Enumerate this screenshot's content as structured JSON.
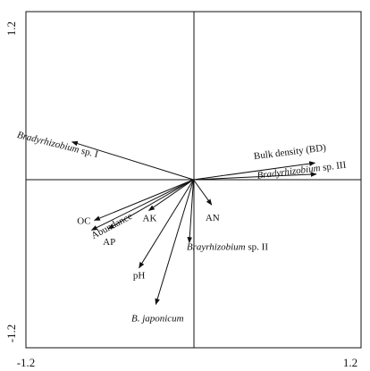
{
  "chart_data": {
    "type": "scatter",
    "subtype": "biplot",
    "title": "",
    "xlabel": "",
    "ylabel": "",
    "xlim": [
      -1.2,
      1.2
    ],
    "ylim": [
      -1.2,
      1.2
    ],
    "grid": false,
    "axis_lines_through_origin": true,
    "x_ticks": [
      {
        "value": -1.2,
        "label": "-1.2"
      },
      {
        "value": 1.2,
        "label": "1.2"
      }
    ],
    "y_ticks": [
      {
        "value": 1.2,
        "label": "1.2"
      },
      {
        "value": -1.2,
        "label": "-1.2"
      }
    ],
    "vectors": [
      {
        "id": "bradyrhizobium-sp-i",
        "prefix": "Bradyrhizobium",
        "suffix": " sp. I",
        "italic_prefix": true,
        "x": -0.87,
        "y": 0.27
      },
      {
        "id": "bulk-density",
        "prefix": "",
        "suffix": "Bulk density (BD)",
        "italic_prefix": false,
        "x": 0.87,
        "y": 0.12
      },
      {
        "id": "bradyrhizobium-sp-iii",
        "prefix": "Bradyrhizobium",
        "suffix": " sp. III",
        "italic_prefix": true,
        "x": 0.88,
        "y": 0.04
      },
      {
        "id": "oc",
        "prefix": "",
        "suffix": "OC",
        "italic_prefix": false,
        "x": -0.71,
        "y": -0.29
      },
      {
        "id": "abundance",
        "prefix": "",
        "suffix": "Abundance",
        "italic_prefix": false,
        "x": -0.73,
        "y": -0.36
      },
      {
        "id": "ap",
        "prefix": "",
        "suffix": "AP",
        "italic_prefix": false,
        "x": -0.61,
        "y": -0.35
      },
      {
        "id": "ak",
        "prefix": "",
        "suffix": "AK",
        "italic_prefix": false,
        "x": -0.32,
        "y": -0.22
      },
      {
        "id": "an",
        "prefix": "",
        "suffix": "AN",
        "italic_prefix": false,
        "x": 0.13,
        "y": -0.18
      },
      {
        "id": "brayrhizobium-sp-ii",
        "prefix": "Brayrhizobium",
        "suffix": " sp. II",
        "italic_prefix": true,
        "x": -0.03,
        "y": -0.45
      },
      {
        "id": "ph",
        "prefix": "",
        "suffix": "pH",
        "italic_prefix": false,
        "x": -0.39,
        "y": -0.63
      },
      {
        "id": "b-japonicum",
        "prefix": "",
        "suffix": "B. japonicum",
        "italic_prefix": true,
        "x": -0.27,
        "y": -0.89
      }
    ]
  }
}
